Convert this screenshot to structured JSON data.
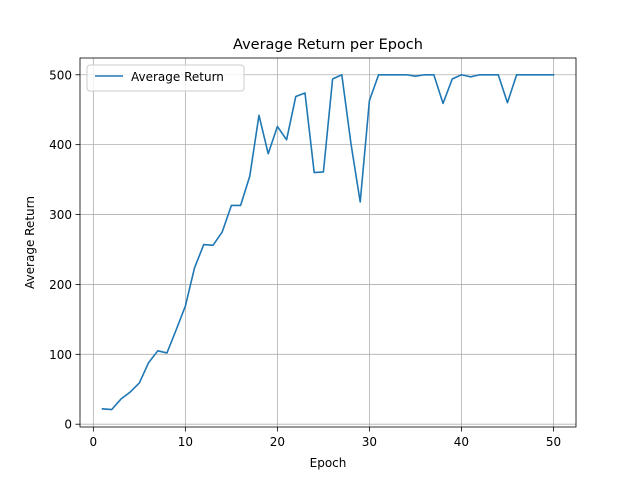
{
  "chart_data": {
    "type": "line",
    "title": "Average Return per Epoch",
    "xlabel": "Epoch",
    "ylabel": "Average Return",
    "xlim": [
      -1.45,
      52.45
    ],
    "ylim": [
      -4.0,
      524.0
    ],
    "xticks": [
      0,
      10,
      20,
      30,
      40,
      50
    ],
    "yticks": [
      0,
      100,
      200,
      300,
      400,
      500
    ],
    "grid": true,
    "legend_position": "upper-left",
    "series": [
      {
        "name": "Average Return",
        "color": "#1f77b4",
        "x": [
          1,
          2,
          3,
          4,
          5,
          6,
          7,
          8,
          9,
          10,
          11,
          12,
          13,
          14,
          15,
          16,
          17,
          18,
          19,
          20,
          21,
          22,
          23,
          24,
          25,
          26,
          27,
          28,
          29,
          30,
          31,
          32,
          33,
          34,
          35,
          36,
          37,
          38,
          39,
          40,
          41,
          42,
          43,
          44,
          45,
          46,
          47,
          48,
          49,
          50
        ],
        "y": [
          22,
          21,
          36,
          46,
          59,
          88,
          105,
          102,
          135,
          169,
          224,
          257,
          256,
          275,
          313,
          313,
          355,
          442,
          387,
          426,
          407,
          469,
          474,
          360,
          361,
          494,
          500,
          401,
          318,
          463,
          500,
          500,
          500,
          500,
          498,
          500,
          500,
          459,
          494,
          500,
          497,
          500,
          500,
          500,
          460,
          500,
          500,
          500,
          500,
          500
        ]
      }
    ]
  }
}
